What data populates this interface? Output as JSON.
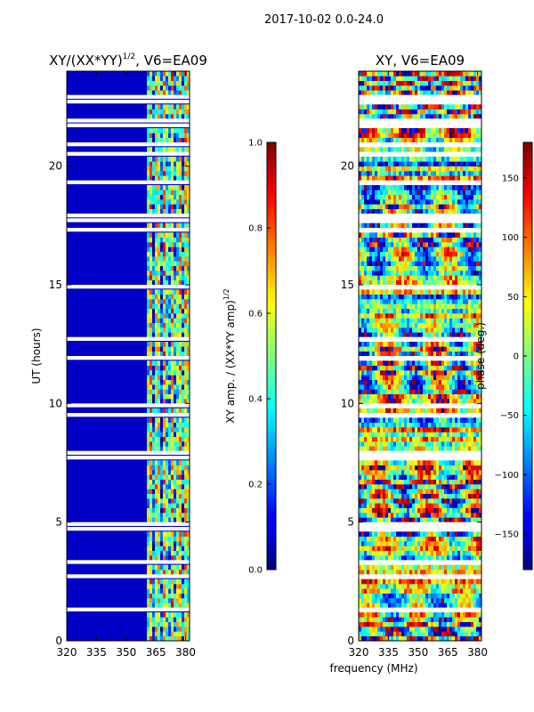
{
  "suptitle": "2017-10-02 0.0-24.0",
  "chart_data": [
    {
      "type": "heatmap",
      "title_main": "XY/(XX*YY)",
      "title_sup": "1/2",
      "title_tail": ", V6=EA09",
      "xlabel": "",
      "ylabel": "UT (hours)",
      "xlim": [
        320,
        382
      ],
      "ylim": [
        0,
        24
      ],
      "xticks": [
        320,
        335,
        350,
        365,
        380
      ],
      "yticks": [
        0,
        5,
        10,
        15,
        20
      ],
      "background_value": 0.07,
      "active_band_mhz": [
        360,
        382
      ],
      "flagged_hour_rows": [
        4.8,
        7.7,
        17.7,
        21.6,
        22.6
      ],
      "colorbar": {
        "label_main": "XY amp. / (XX*YY amp)",
        "label_sup": "1/2",
        "range": [
          0.0,
          1.0
        ],
        "ticks": [
          "0.0",
          "0.2",
          "0.4",
          "0.6",
          "0.8",
          "1.0"
        ]
      }
    },
    {
      "type": "heatmap",
      "title": "XY, V6=EA09",
      "xlabel": "frequency (MHz)",
      "ylabel": "",
      "xlim": [
        320,
        382
      ],
      "ylim": [
        0,
        24
      ],
      "xticks": [
        320,
        335,
        350,
        365,
        380
      ],
      "yticks": [
        0,
        5,
        10,
        15,
        20
      ],
      "flagged_hour_rows": [
        4.8,
        7.7,
        17.7,
        21.6,
        22.6
      ],
      "colorbar": {
        "label": "phase (deg.)",
        "range": [
          -180,
          180
        ],
        "ticks": [
          "150",
          "100",
          "50",
          "0",
          "−50",
          "−100",
          "−150"
        ],
        "tick_values": [
          150,
          100,
          50,
          0,
          -50,
          -100,
          -150
        ]
      }
    }
  ]
}
